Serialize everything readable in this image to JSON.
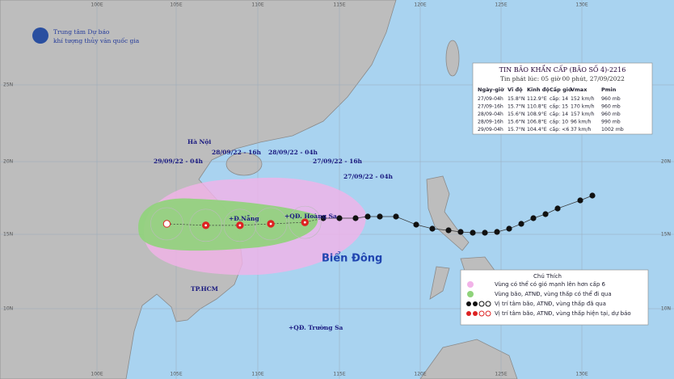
{
  "header": {
    "org1": "Trung tâm Dự báo",
    "org2": "khí tượng thủy văn quốc gia"
  },
  "info": {
    "title": "TIN BÃO KHẨN CẤP  (BÃO SỐ 4)-2216",
    "issued": "Tin phát lúc: 05 giờ 00 phút, 27/09/2022",
    "columns": [
      "Ngày-giờ",
      "Vĩ độ",
      "Kinh độ",
      "Cấp gió",
      "Vmax",
      "Pmin"
    ],
    "rows": [
      [
        "27/09-04h",
        "15.8°N",
        "112.9°E",
        "cấp: 14",
        "152 km/h",
        "960 mb"
      ],
      [
        "27/09-16h",
        "15.7°N",
        "110.8°E",
        "cấp: 15",
        "170 km/h",
        "960 mb"
      ],
      [
        "28/09-04h",
        "15.6°N",
        "108.9°E",
        "cấp: 14",
        "157 km/h",
        "960 mb"
      ],
      [
        "28/09-16h",
        "15.6°N",
        "106.8°E",
        "cấp: 10",
        "96 km/h",
        "990 mb"
      ],
      [
        "29/09-04h",
        "15.7°N",
        "104.4°E",
        "cấp: <6",
        "37 km/h",
        "1002 mb"
      ]
    ]
  },
  "map": {
    "place_labels": [
      "Hà Nội",
      "+Đ.Nẵng",
      "+QĐ. Hoàng Sa",
      "+QĐ. Trường Sa",
      "TP.HCM",
      "Biển Đông"
    ],
    "time_labels": [
      "29/09/22 - 04h",
      "28/09/22 - 16h",
      "28/09/22 - 04h",
      "27/09/22 - 16h",
      "27/09/22 - 04h"
    ],
    "lon_labels_top": [
      "100E",
      "105E",
      "110E",
      "115E",
      "120E",
      "125E",
      "130E"
    ],
    "lon_labels_bottom": [
      "100E",
      "105E",
      "110E",
      "115E",
      "120E",
      "125E",
      "130E"
    ],
    "lat_labels_left": [
      "25N",
      "20N",
      "15N",
      "10N"
    ],
    "lat_labels_right": [
      "20N",
      "15N",
      "10N"
    ]
  },
  "legend": {
    "title": "Chú Thích",
    "items": [
      "Vùng có thể có gió mạnh lên hơn cấp 6",
      "Vùng bão, ATNĐ, vùng thấp có thể đi qua",
      "Vị trí tâm bão, ATNĐ, vùng thấp đã qua",
      "Vị trí tâm bão, ATNĐ, vùng thấp hiện tại, dự báo"
    ]
  }
}
